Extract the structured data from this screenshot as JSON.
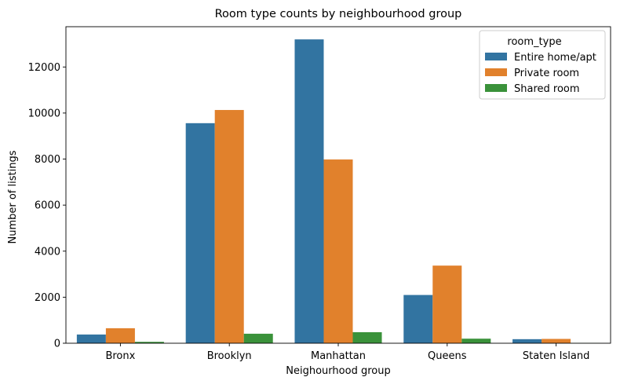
{
  "chart_data": {
    "type": "bar",
    "title": "Room type counts by neighbourhood group",
    "xlabel": "Neighourhood group",
    "ylabel": "Number of listings",
    "categories": [
      "Bronx",
      "Brooklyn",
      "Manhattan",
      "Queens",
      "Staten Island"
    ],
    "series": [
      {
        "name": "Entire home/apt",
        "color": "#3274a1",
        "values": [
          379,
          9559,
          13199,
          2096,
          176
        ]
      },
      {
        "name": "Private room",
        "color": "#e1812c",
        "values": [
          652,
          10132,
          7982,
          3372,
          188
        ]
      },
      {
        "name": "Shared room",
        "color": "#3a923a",
        "values": [
          60,
          413,
          480,
          198,
          9
        ]
      }
    ],
    "ylim": [
      0,
      13750
    ],
    "yticks": [
      0,
      2000,
      4000,
      6000,
      8000,
      10000,
      12000
    ],
    "legend": {
      "title": "room_type",
      "position": "top-right"
    },
    "grid": false
  }
}
